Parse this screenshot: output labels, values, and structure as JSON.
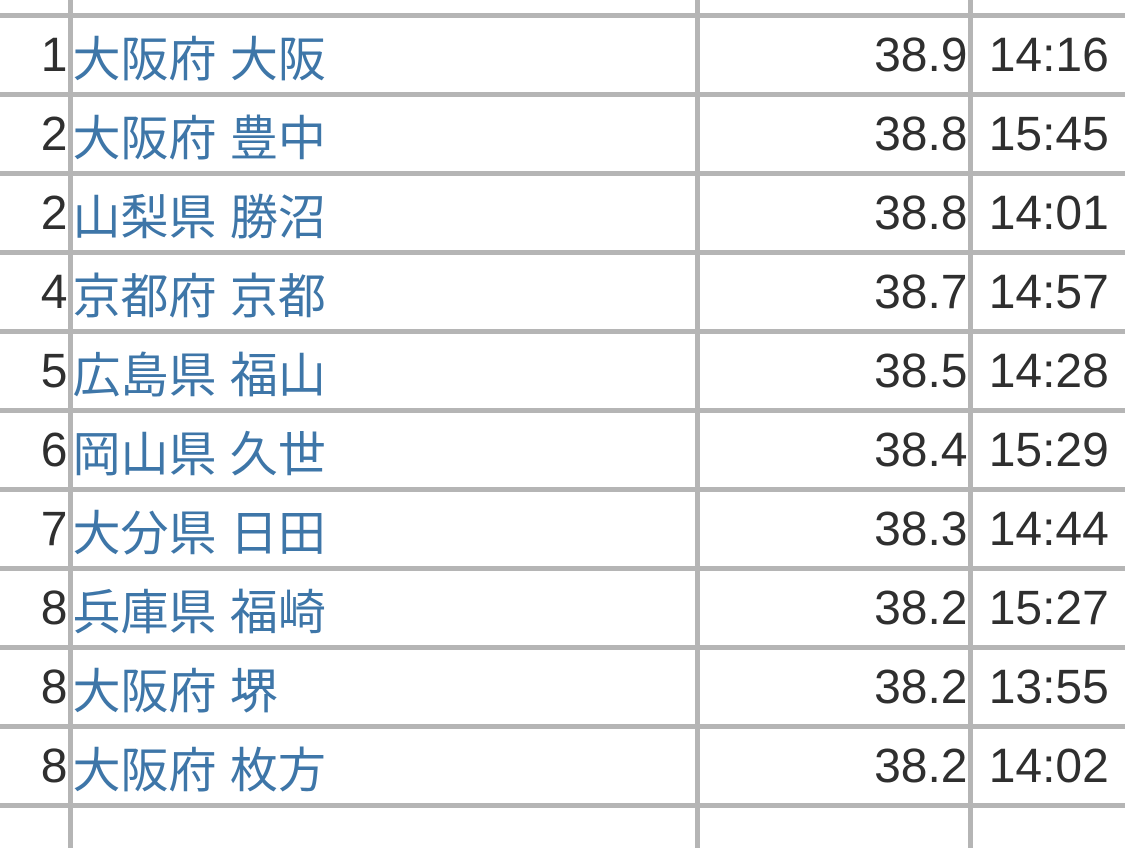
{
  "theme": {
    "border_color": "#b5b5b5",
    "text_color": "#2f2f2f",
    "link_color": "#3e76a8",
    "background_color": "#ffffff"
  },
  "ranking_table": {
    "columns": [
      "rank",
      "location",
      "temperature",
      "time"
    ],
    "rows": [
      {
        "rank": "1",
        "location": "大阪府 大阪",
        "temperature": "38.9",
        "time": "14:16"
      },
      {
        "rank": "2",
        "location": "大阪府 豊中",
        "temperature": "38.8",
        "time": "15:45"
      },
      {
        "rank": "2",
        "location": "山梨県 勝沼",
        "temperature": "38.8",
        "time": "14:01"
      },
      {
        "rank": "4",
        "location": "京都府 京都",
        "temperature": "38.7",
        "time": "14:57"
      },
      {
        "rank": "5",
        "location": "広島県 福山",
        "temperature": "38.5",
        "time": "14:28"
      },
      {
        "rank": "6",
        "location": "岡山県 久世",
        "temperature": "38.4",
        "time": "15:29"
      },
      {
        "rank": "7",
        "location": "大分県 日田",
        "temperature": "38.3",
        "time": "14:44"
      },
      {
        "rank": "8",
        "location": "兵庫県 福崎",
        "temperature": "38.2",
        "time": "15:27"
      },
      {
        "rank": "8",
        "location": "大阪府 堺",
        "temperature": "38.2",
        "time": "13:55"
      },
      {
        "rank": "8",
        "location": "大阪府 枚方",
        "temperature": "38.2",
        "time": "14:02"
      }
    ]
  }
}
